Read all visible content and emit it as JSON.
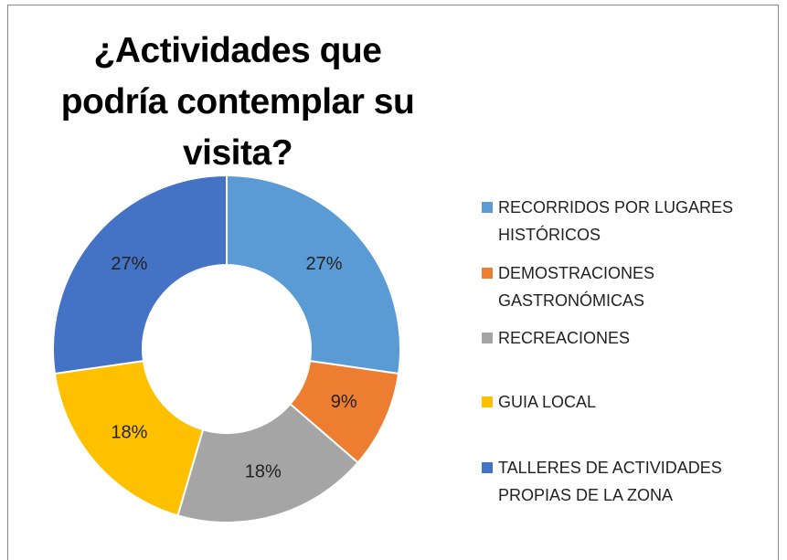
{
  "chart_data": {
    "type": "donut",
    "title": "¿Actividades que podría contemplar su visita?",
    "categories": [
      "RECORRIDOS POR LUGARES HISTÓRICOS",
      "DEMOSTRACIONES GASTRONÓMICAS",
      "RECREACIONES",
      "GUIA LOCAL",
      "TALLERES DE ACTIVIDADES PROPIAS DE LA ZONA"
    ],
    "values": [
      27,
      9,
      18,
      18,
      27
    ],
    "value_labels": [
      "27%",
      "9%",
      "18%",
      "18%",
      "27%"
    ],
    "colors": [
      "#5b9bd5",
      "#ed7d31",
      "#a5a5a5",
      "#ffc000",
      "#4472c4"
    ],
    "legend": "right"
  }
}
